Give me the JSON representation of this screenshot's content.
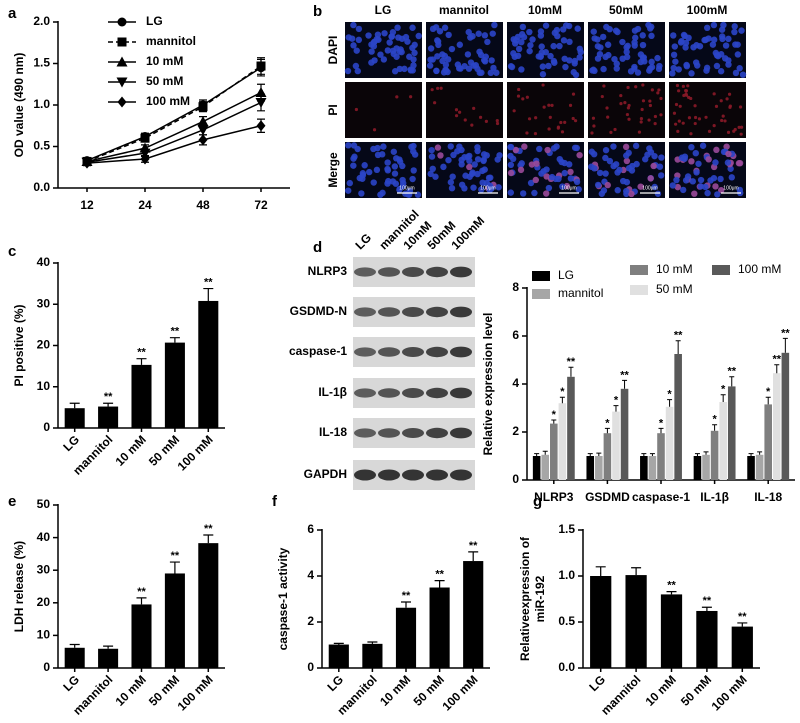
{
  "chart_data": [
    {
      "type": "line",
      "panel": "a",
      "ylabel": "OD value (490 nm)",
      "categories": [
        "12",
        "24",
        "48",
        "72"
      ],
      "ylim": [
        0,
        2
      ],
      "yticks": [
        {
          "value": 0,
          "label": "0.0"
        },
        {
          "value": 0.5,
          "label": "0.5"
        },
        {
          "value": 1,
          "label": "1.0"
        },
        {
          "value": 1.5,
          "label": "1.5"
        },
        {
          "value": 2,
          "label": "2.0"
        }
      ],
      "series": [
        {
          "name": "LG",
          "color": "#000000",
          "marker": "circle",
          "dash": false,
          "values": [
            0.33,
            0.62,
            1.0,
            1.45
          ],
          "errors": [
            0.03,
            0.04,
            0.06,
            0.1
          ]
        },
        {
          "name": "mannitol",
          "color": "#000000",
          "marker": "square",
          "dash": true,
          "values": [
            0.32,
            0.6,
            0.98,
            1.47
          ],
          "errors": [
            0.03,
            0.04,
            0.06,
            0.1
          ]
        },
        {
          "name": "10 mM",
          "color": "#000000",
          "marker": "triangle-up",
          "dash": false,
          "values": [
            0.32,
            0.48,
            0.8,
            1.15
          ],
          "errors": [
            0.03,
            0.04,
            0.06,
            0.1
          ]
        },
        {
          "name": "50 mM",
          "color": "#000000",
          "marker": "triangle-down",
          "dash": false,
          "values": [
            0.31,
            0.42,
            0.7,
            1.03
          ],
          "errors": [
            0.03,
            0.04,
            0.06,
            0.1
          ]
        },
        {
          "name": "100 mM",
          "color": "#000000",
          "marker": "diamond",
          "dash": false,
          "values": [
            0.3,
            0.35,
            0.58,
            0.75
          ],
          "errors": [
            0.03,
            0.04,
            0.06,
            0.08
          ]
        }
      ]
    },
    {
      "type": "bar",
      "panel": "c",
      "ylabel": "PI positive (%)",
      "color": "#000000",
      "categories": [
        "LG",
        "mannitol",
        "10 mM",
        "50 mM",
        "100 mM"
      ],
      "values": [
        4.8,
        5.2,
        15.3,
        20.7,
        30.8
      ],
      "errors": [
        1.2,
        0.8,
        1.5,
        1.2,
        3.0
      ],
      "annotations": [
        null,
        "**",
        "**",
        "**",
        "**"
      ],
      "ylim": [
        0,
        40
      ],
      "yticks": [
        0,
        10,
        20,
        30,
        40
      ]
    },
    {
      "type": "bar",
      "ylabel": "Relative expression level",
      "categories": [
        "NLRP3",
        "GSDMD",
        "caspase-1",
        "IL-1β",
        "IL-18"
      ],
      "ylim": [
        0,
        8
      ],
      "yticks": [
        0,
        2,
        4,
        6,
        8
      ],
      "series": [
        {
          "name": "LG",
          "color": "#000000",
          "values": [
            1,
            1,
            1,
            1,
            1
          ],
          "errors": [
            0.1,
            0.1,
            0.1,
            0.1,
            0.1
          ],
          "annotations": [
            null,
            null,
            null,
            null,
            null
          ]
        },
        {
          "name": "mannitol",
          "color": "#a6a6a6",
          "values": [
            1.05,
            1.0,
            1.0,
            1.05,
            1.05
          ],
          "errors": [
            0.15,
            0.12,
            0.1,
            0.12,
            0.12
          ],
          "annotations": [
            null,
            null,
            null,
            null,
            null
          ]
        },
        {
          "name": "10 mM",
          "color": "#7f7f7f",
          "values": [
            2.35,
            1.95,
            1.95,
            2.05,
            3.15
          ],
          "errors": [
            0.15,
            0.2,
            0.2,
            0.25,
            0.3
          ],
          "annotations": [
            "*",
            "*",
            "*",
            "*",
            "*"
          ]
        },
        {
          "name": "50 mM",
          "color": "#e0e0e0",
          "values": [
            3.2,
            2.85,
            3.05,
            3.25,
            4.45
          ],
          "errors": [
            0.25,
            0.25,
            0.3,
            0.3,
            0.35
          ],
          "annotations": [
            "*",
            "*",
            "*",
            "*",
            "**"
          ]
        },
        {
          "name": "100 mM",
          "color": "#595959",
          "values": [
            4.3,
            3.8,
            5.25,
            3.9,
            5.3
          ],
          "errors": [
            0.4,
            0.35,
            0.55,
            0.4,
            0.6
          ],
          "annotations": [
            "**",
            "**",
            "**",
            "**",
            "**"
          ]
        }
      ]
    },
    {
      "type": "bar",
      "panel": "e",
      "ylabel": "LDH release (%)",
      "color": "#000000",
      "categories": [
        "LG",
        "mannitol",
        "10 mM",
        "50 mM",
        "100 mM"
      ],
      "values": [
        6.2,
        5.9,
        19.5,
        29.0,
        38.3
      ],
      "errors": [
        1.0,
        0.8,
        2.0,
        3.5,
        2.5
      ],
      "annotations": [
        null,
        null,
        "**",
        "**",
        "**"
      ],
      "ylim": [
        0,
        50
      ],
      "yticks": [
        0,
        10,
        20,
        30,
        40,
        50
      ]
    },
    {
      "type": "bar",
      "panel": "f",
      "ylabel": "caspase-1 activity",
      "color": "#000000",
      "categories": [
        "LG",
        "mannitol",
        "10 mM",
        "50 mM",
        "100 mM"
      ],
      "values": [
        1.02,
        1.05,
        2.62,
        3.5,
        4.65
      ],
      "errors": [
        0.05,
        0.08,
        0.25,
        0.3,
        0.4
      ],
      "annotations": [
        null,
        null,
        "**",
        "**",
        "**"
      ],
      "ylim": [
        0,
        6
      ],
      "yticks": [
        0,
        2,
        4,
        6
      ]
    },
    {
      "type": "bar",
      "panel": "g",
      "ylabel": [
        "Relativeexpression of",
        "miR-192"
      ],
      "color": "#000000",
      "categories": [
        "LG",
        "mannitol",
        "10 mM",
        "50 mM",
        "100 mM"
      ],
      "values": [
        1.0,
        1.01,
        0.8,
        0.62,
        0.45
      ],
      "errors": [
        0.1,
        0.08,
        0.03,
        0.04,
        0.04
      ],
      "annotations": [
        null,
        null,
        "**",
        "**",
        "**"
      ],
      "ylim": [
        0,
        1.5
      ],
      "yticks": [
        {
          "value": 0,
          "label": "0.0"
        },
        {
          "value": 0.5,
          "label": "0.5"
        },
        {
          "value": 1,
          "label": "1.0"
        },
        {
          "value": 1.5,
          "label": "1.5"
        }
      ]
    }
  ],
  "images_b": {
    "panel": "b",
    "columns": [
      "LG",
      "mannitol",
      "10mM",
      "50mM",
      "100mM"
    ],
    "rows": [
      "DAPI",
      "PI",
      "Merge"
    ],
    "scale_bar": "100μm"
  },
  "blot_d": {
    "panel": "d",
    "lanes": [
      "LG",
      "mannitol",
      "10mM",
      "50mM",
      "100mM"
    ],
    "proteins": [
      "NLRP3",
      "GSDMD-N",
      "caspase-1",
      "IL-1β",
      "IL-18",
      "GAPDH"
    ]
  }
}
